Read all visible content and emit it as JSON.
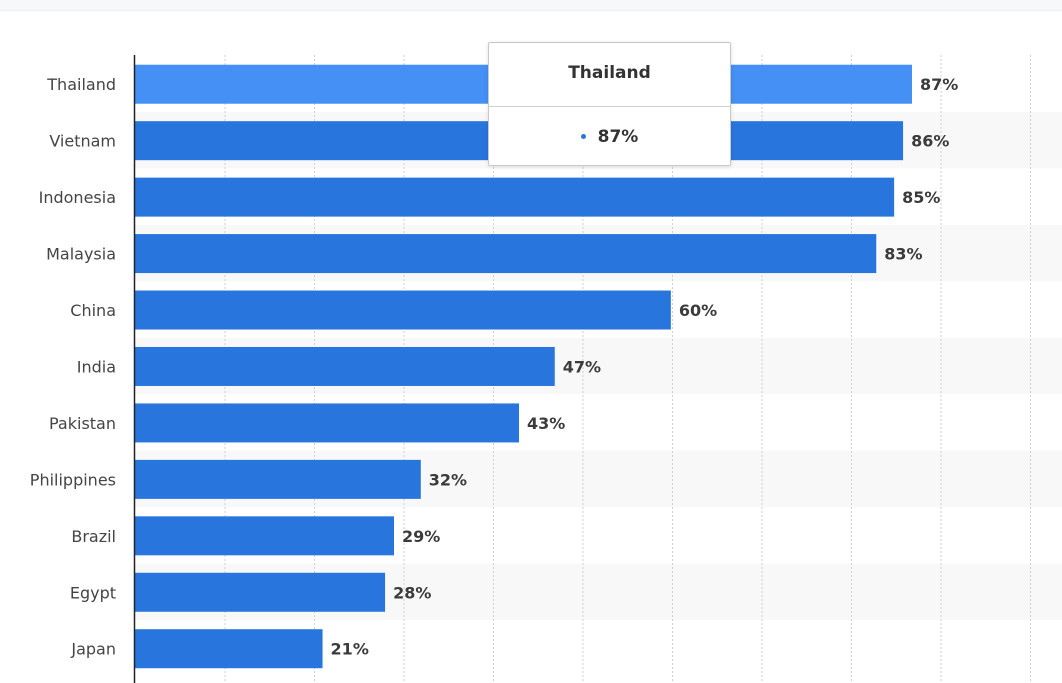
{
  "chart_data": {
    "type": "bar",
    "orientation": "horizontal",
    "categories": [
      "Thailand",
      "Vietnam",
      "Indonesia",
      "Malaysia",
      "China",
      "India",
      "Pakistan",
      "Philippines",
      "Brazil",
      "Egypt",
      "Japan"
    ],
    "values": [
      87,
      86,
      85,
      83,
      60,
      47,
      43,
      32,
      29,
      28,
      21
    ],
    "value_labels": [
      "87%",
      "86%",
      "85%",
      "83%",
      "60%",
      "47%",
      "43%",
      "32%",
      "29%",
      "28%",
      "21%"
    ],
    "xlim": [
      0,
      100
    ],
    "grid": true,
    "bar_color": "#2876dd",
    "highlight_color": "#4490f5",
    "highlighted_index": 0
  },
  "tooltip": {
    "title": "Thailand",
    "value": "87%",
    "marker_color": "#2876dd"
  }
}
